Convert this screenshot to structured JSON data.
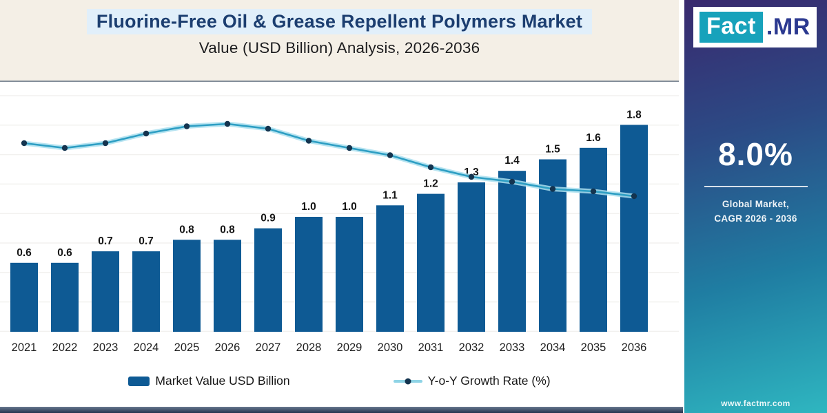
{
  "header": {
    "title": "Fluorine-Free Oil & Grease Repellent Polymers Market",
    "subtitle": "Value (USD Billion) Analysis, 2026-2036"
  },
  "chart_data": {
    "type": "bar+line",
    "categories": [
      "2021",
      "2022",
      "2023",
      "2024",
      "2025",
      "2026",
      "2027",
      "2028",
      "2029",
      "2030",
      "2031",
      "2032",
      "2033",
      "2034",
      "2035",
      "2036"
    ],
    "series": [
      {
        "name": "Market Value USD Billion",
        "type": "bar",
        "color": "#0e5a94",
        "values": [
          0.6,
          0.6,
          0.7,
          0.7,
          0.8,
          0.8,
          0.9,
          1.0,
          1.0,
          1.1,
          1.2,
          1.3,
          1.4,
          1.5,
          1.6,
          1.8
        ]
      },
      {
        "name": "Y-o-Y Growth Rate (%)",
        "type": "line",
        "color": "#2d9ec3",
        "halo_color": "#aadfee",
        "marker_color": "#14344f",
        "axis": "secondary (unlabeled, values estimated)",
        "values": [
          8.2,
          8.0,
          8.2,
          8.6,
          8.9,
          9.0,
          8.8,
          8.3,
          8.0,
          7.7,
          7.2,
          6.8,
          6.6,
          6.3,
          6.2,
          6.0
        ]
      }
    ],
    "bar_value_labels": [
      "0.6",
      "0.6",
      "0.7",
      "0.7",
      "0.8",
      "0.8",
      "0.9",
      "1.0",
      "1.0",
      "1.1",
      "1.2",
      "1.3",
      "1.4",
      "1.5",
      "1.6",
      "1.8"
    ],
    "title": "Fluorine-Free Oil & Grease Repellent Polymers Market Value (USD Billion) Analysis, 2026-2036",
    "xlabel": "",
    "ylabel": "",
    "ylim_bar": [
      0,
      2.0
    ],
    "grid": "faint horizontal lines",
    "legend_position": "bottom"
  },
  "legend": [
    {
      "label": "Market Value USD Billion",
      "swatch": "bar",
      "color": "#0e5a94"
    },
    {
      "label": "Y-o-Y Growth Rate (%)",
      "swatch": "line-dot",
      "color": "#2d9ec3"
    }
  ],
  "sidebar": {
    "logo_part1": "Fact",
    "logo_part2": ".MR",
    "cagr_value": "8.0%",
    "caption_line1": "Global Market,",
    "caption_line2": "CAGR 2026 - 2036",
    "website": "www.factmr.com",
    "colors": {
      "gradient_top": "#39296e",
      "gradient_mid": "#2c4a85",
      "gradient_bottom": "#2fb6c0",
      "logo_teal": "#17a2bb",
      "logo_blue": "#2b3990"
    }
  }
}
